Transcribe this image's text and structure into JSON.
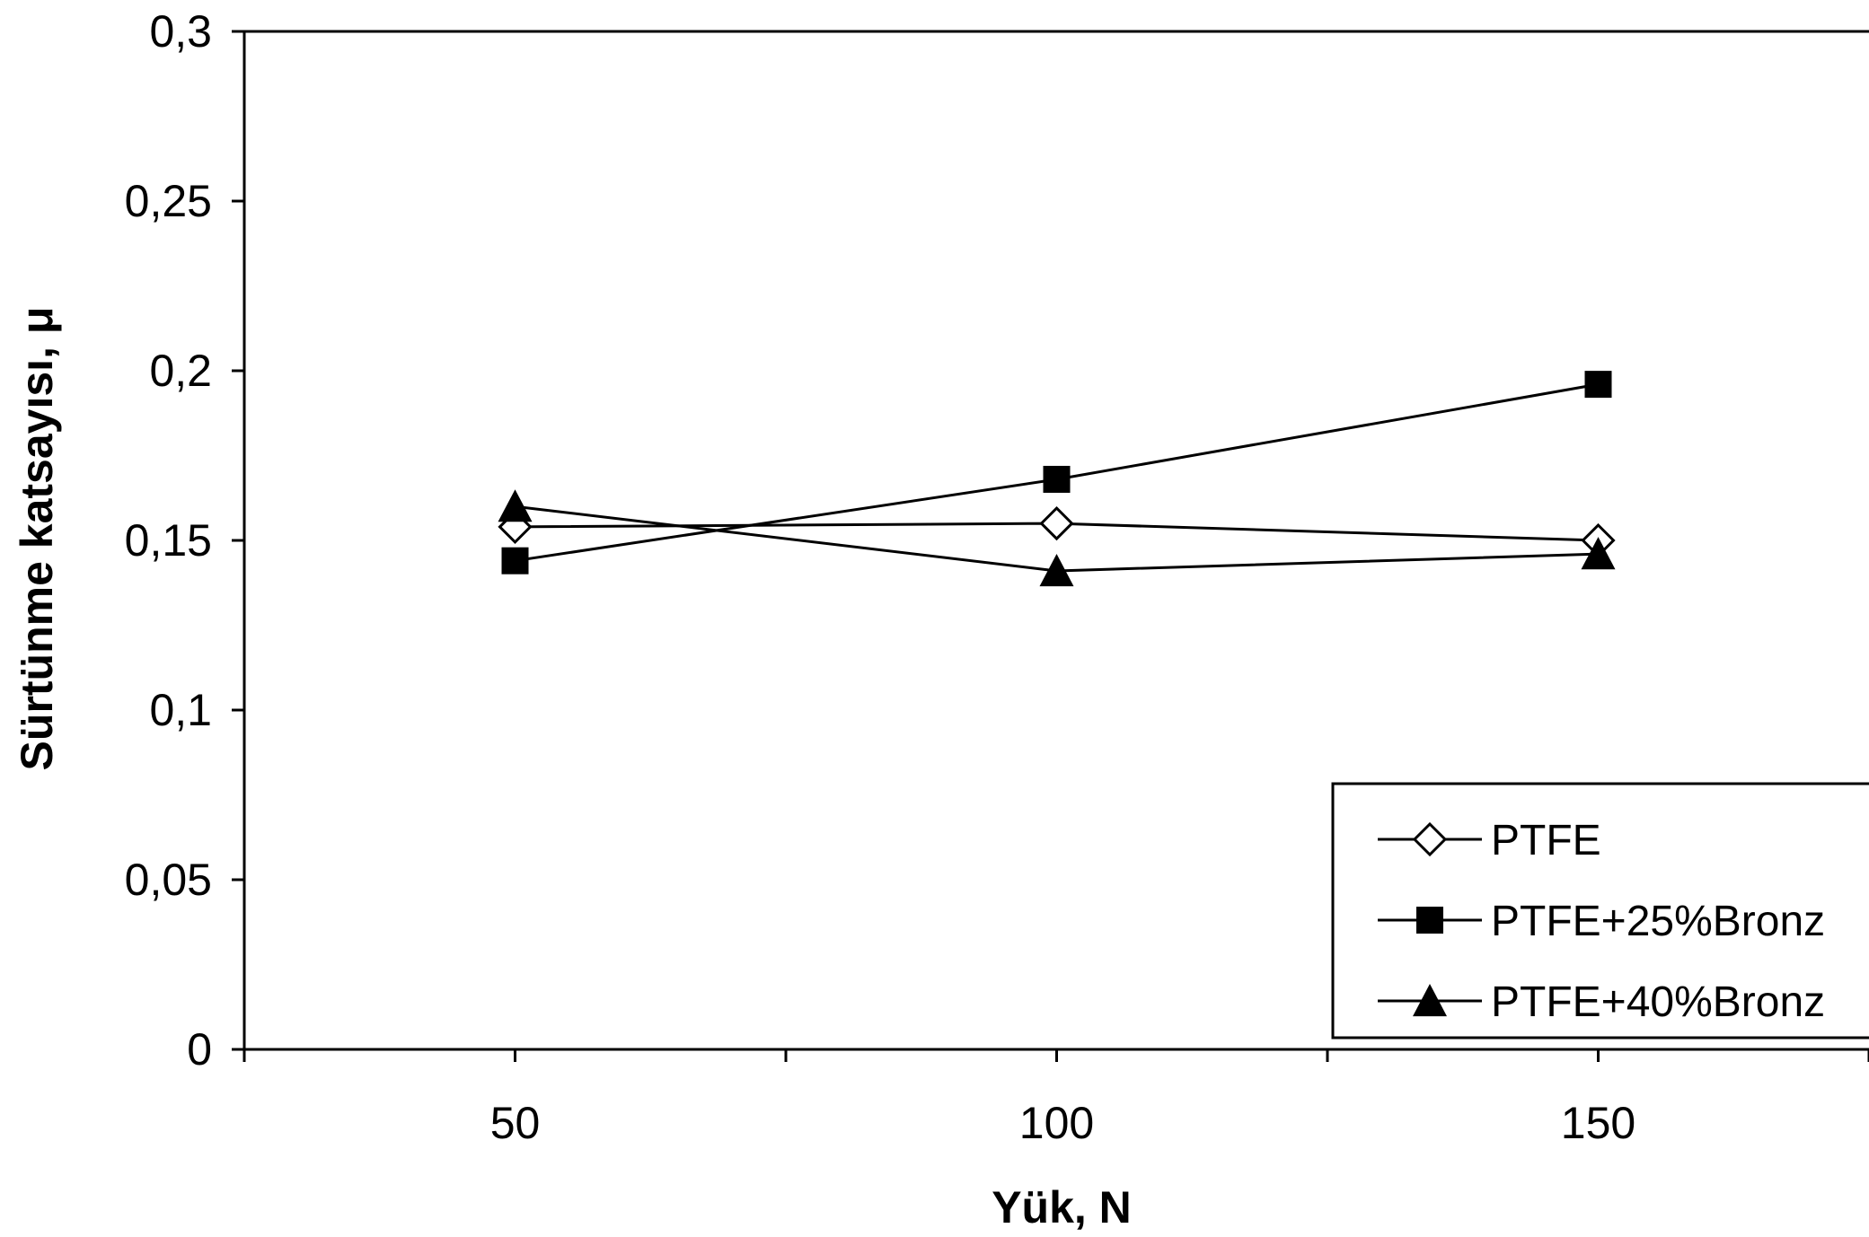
{
  "chart_data": {
    "type": "line",
    "xlabel": "Yük, N",
    "ylabel": "Sürtünme katsayısı, μ",
    "x": [
      50,
      100,
      150
    ],
    "x_ticks": [
      "50",
      "100",
      "150"
    ],
    "xlim": [
      25,
      175
    ],
    "ylim": [
      0,
      0.3
    ],
    "y_ticks": [
      "0",
      "0,05",
      "0,1",
      "0,15",
      "0,2",
      "0,25",
      "0,3"
    ],
    "y_tick_values": [
      0,
      0.05,
      0.1,
      0.15,
      0.2,
      0.25,
      0.3
    ],
    "grid": false,
    "legend_position": "bottom-right",
    "series": [
      {
        "name": "PTFE",
        "marker": "diamond-open",
        "values": [
          0.154,
          0.155,
          0.15
        ]
      },
      {
        "name": "PTFE+25%Bronz",
        "marker": "square-filled",
        "values": [
          0.144,
          0.168,
          0.196
        ]
      },
      {
        "name": "PTFE+40%Bronz",
        "marker": "triangle-filled",
        "values": [
          0.16,
          0.141,
          0.146
        ]
      }
    ],
    "colors": {
      "line": "#000000",
      "marker_fill": "#000000",
      "open_marker_fill": "#ffffff"
    }
  }
}
